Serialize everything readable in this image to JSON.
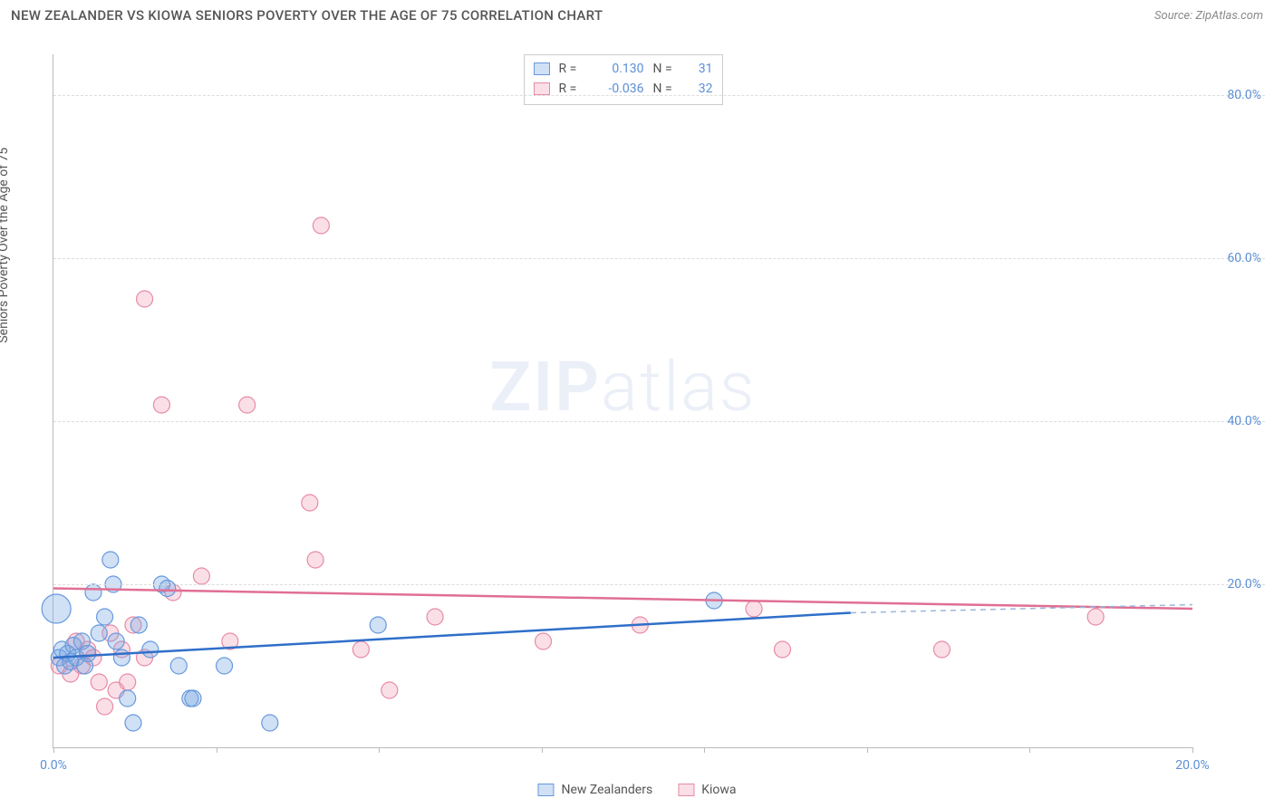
{
  "title": "NEW ZEALANDER VS KIOWA SENIORS POVERTY OVER THE AGE OF 75 CORRELATION CHART",
  "source_prefix": "Source: ",
  "source": "ZipAtlas.com",
  "ylabel": "Seniors Poverty Over the Age of 75",
  "watermark_bold": "ZIP",
  "watermark_rest": "atlas",
  "colors": {
    "blue_fill": "rgba(120,165,225,0.35)",
    "blue_stroke": "#6699dd",
    "pink_fill": "rgba(240,150,175,0.30)",
    "pink_stroke": "#e88aa5",
    "blue_line": "#2f6fc9",
    "pink_line": "#e06f93",
    "dash": "#9bb6d8",
    "axis_text": "#5b8fd6",
    "grid": "#dddddd",
    "bg": "#ffffff"
  },
  "chart": {
    "type": "scatter",
    "xlim": [
      0,
      20
    ],
    "ylim": [
      0,
      85
    ],
    "y_ticks": [
      20,
      40,
      60,
      80
    ],
    "y_tick_labels": [
      "20.0%",
      "40.0%",
      "60.0%",
      "80.0%"
    ],
    "x_ticks": [
      0,
      2.86,
      5.71,
      8.57,
      11.43,
      14.29,
      17.14,
      20
    ],
    "x_tick_labels_shown": {
      "0": "0.0%",
      "20": "20.0%"
    },
    "marker_radius": 9,
    "marker_radius_large": 16,
    "line_width": 2.5
  },
  "stats": {
    "rows": [
      {
        "swatch": "blue",
        "R_label": "R =",
        "R": "0.130",
        "N_label": "N =",
        "N": "31"
      },
      {
        "swatch": "pink",
        "R_label": "R =",
        "R": "-0.036",
        "N_label": "N =",
        "N": "32"
      }
    ]
  },
  "legend": [
    {
      "swatch": "blue",
      "label": "New Zealanders"
    },
    {
      "swatch": "pink",
      "label": "Kiowa"
    }
  ],
  "trend_lines": {
    "blue": {
      "x1": 0,
      "y1": 11.0,
      "x2": 14.0,
      "y2": 16.5
    },
    "blue_dash": {
      "x1": 14.0,
      "y1": 16.5,
      "x2": 20.0,
      "y2": 17.5
    },
    "pink": {
      "x1": 0,
      "y1": 19.5,
      "x2": 20.0,
      "y2": 17.0
    }
  },
  "series": {
    "blue": [
      {
        "x": 0.05,
        "y": 17.0,
        "r": 16
      },
      {
        "x": 0.1,
        "y": 11,
        "r": 9
      },
      {
        "x": 0.15,
        "y": 12,
        "r": 9
      },
      {
        "x": 0.2,
        "y": 10,
        "r": 9
      },
      {
        "x": 0.25,
        "y": 11.5,
        "r": 9
      },
      {
        "x": 0.3,
        "y": 10.5,
        "r": 9
      },
      {
        "x": 0.35,
        "y": 12.5,
        "r": 9
      },
      {
        "x": 0.4,
        "y": 11,
        "r": 9
      },
      {
        "x": 0.5,
        "y": 13,
        "r": 9
      },
      {
        "x": 0.55,
        "y": 10,
        "r": 9
      },
      {
        "x": 0.6,
        "y": 11.5,
        "r": 9
      },
      {
        "x": 0.7,
        "y": 19,
        "r": 9
      },
      {
        "x": 0.8,
        "y": 14,
        "r": 9
      },
      {
        "x": 0.9,
        "y": 16,
        "r": 9
      },
      {
        "x": 1.0,
        "y": 23,
        "r": 9
      },
      {
        "x": 1.05,
        "y": 20,
        "r": 9
      },
      {
        "x": 1.1,
        "y": 13,
        "r": 9
      },
      {
        "x": 1.2,
        "y": 11,
        "r": 9
      },
      {
        "x": 1.3,
        "y": 6,
        "r": 9
      },
      {
        "x": 1.4,
        "y": 3,
        "r": 9
      },
      {
        "x": 1.5,
        "y": 15,
        "r": 9
      },
      {
        "x": 1.7,
        "y": 12,
        "r": 9
      },
      {
        "x": 1.9,
        "y": 20,
        "r": 9
      },
      {
        "x": 2.0,
        "y": 19.5,
        "r": 9
      },
      {
        "x": 2.2,
        "y": 10,
        "r": 9
      },
      {
        "x": 2.4,
        "y": 6,
        "r": 9
      },
      {
        "x": 2.45,
        "y": 6,
        "r": 9
      },
      {
        "x": 3.0,
        "y": 10,
        "r": 9
      },
      {
        "x": 3.8,
        "y": 3,
        "r": 9
      },
      {
        "x": 5.7,
        "y": 15,
        "r": 9
      },
      {
        "x": 11.6,
        "y": 18,
        "r": 9
      }
    ],
    "pink": [
      {
        "x": 0.1,
        "y": 10,
        "r": 9
      },
      {
        "x": 0.3,
        "y": 9,
        "r": 9
      },
      {
        "x": 0.4,
        "y": 13,
        "r": 9
      },
      {
        "x": 0.5,
        "y": 10,
        "r": 9
      },
      {
        "x": 0.6,
        "y": 12,
        "r": 9
      },
      {
        "x": 0.7,
        "y": 11,
        "r": 9
      },
      {
        "x": 0.8,
        "y": 8,
        "r": 9
      },
      {
        "x": 0.9,
        "y": 5,
        "r": 9
      },
      {
        "x": 1.0,
        "y": 14,
        "r": 9
      },
      {
        "x": 1.1,
        "y": 7,
        "r": 9
      },
      {
        "x": 1.2,
        "y": 12,
        "r": 9
      },
      {
        "x": 1.3,
        "y": 8,
        "r": 9
      },
      {
        "x": 1.6,
        "y": 11,
        "r": 9
      },
      {
        "x": 1.6,
        "y": 55,
        "r": 9
      },
      {
        "x": 1.9,
        "y": 42,
        "r": 9
      },
      {
        "x": 2.1,
        "y": 19,
        "r": 9
      },
      {
        "x": 2.6,
        "y": 21,
        "r": 9
      },
      {
        "x": 3.1,
        "y": 13,
        "r": 9
      },
      {
        "x": 3.4,
        "y": 42,
        "r": 9
      },
      {
        "x": 4.5,
        "y": 30,
        "r": 9
      },
      {
        "x": 4.6,
        "y": 23,
        "r": 9
      },
      {
        "x": 4.7,
        "y": 64,
        "r": 9
      },
      {
        "x": 5.4,
        "y": 12,
        "r": 9
      },
      {
        "x": 5.9,
        "y": 7,
        "r": 9
      },
      {
        "x": 6.7,
        "y": 16,
        "r": 9
      },
      {
        "x": 8.6,
        "y": 13,
        "r": 9
      },
      {
        "x": 10.3,
        "y": 15,
        "r": 9
      },
      {
        "x": 12.3,
        "y": 17,
        "r": 9
      },
      {
        "x": 12.8,
        "y": 12,
        "r": 9
      },
      {
        "x": 15.6,
        "y": 12,
        "r": 9
      },
      {
        "x": 18.3,
        "y": 16,
        "r": 9
      },
      {
        "x": 1.4,
        "y": 15,
        "r": 9
      }
    ]
  }
}
